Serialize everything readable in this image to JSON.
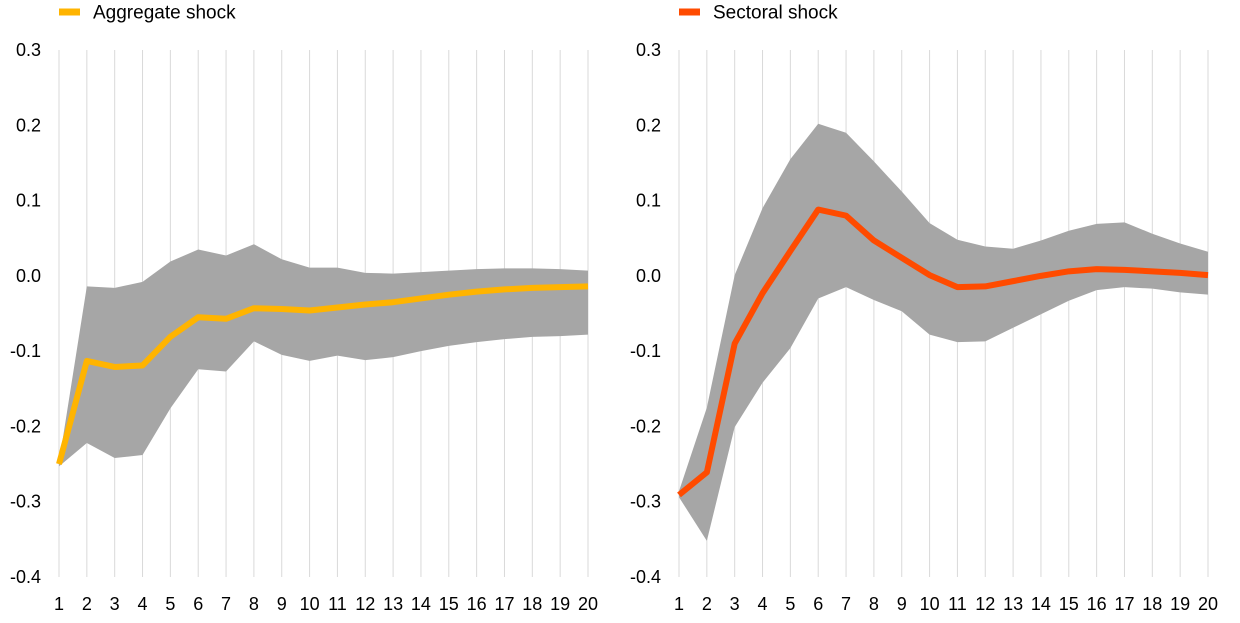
{
  "chart_data": [
    {
      "type": "line",
      "x": [
        1,
        2,
        3,
        4,
        5,
        6,
        7,
        8,
        9,
        10,
        11,
        12,
        13,
        14,
        15,
        16,
        17,
        18,
        19,
        20
      ],
      "ylim": [
        -0.4,
        0.3
      ],
      "yticks": [
        "0.3",
        "0.2",
        "0.1",
        "0.0",
        "-0.1",
        "-0.2",
        "-0.3",
        "-0.4"
      ],
      "grid": "vertical",
      "legend_position": "top-left",
      "series": [
        {
          "name": "Aggregate shock",
          "color": "#ffb400",
          "values": [
            -0.25,
            -0.113,
            -0.121,
            -0.119,
            -0.081,
            -0.055,
            -0.057,
            -0.043,
            -0.044,
            -0.046,
            -0.042,
            -0.038,
            -0.035,
            -0.03,
            -0.025,
            -0.021,
            -0.018,
            -0.016,
            -0.015,
            -0.014
          ],
          "band_color": "#a6a6a6",
          "band_upper": [
            -0.248,
            -0.014,
            -0.016,
            -0.008,
            0.019,
            0.035,
            0.027,
            0.042,
            0.022,
            0.011,
            0.011,
            0.004,
            0.003,
            0.005,
            0.007,
            0.009,
            0.01,
            0.01,
            0.009,
            0.007
          ],
          "band_lower": [
            -0.253,
            -0.222,
            -0.242,
            -0.238,
            -0.176,
            -0.124,
            -0.127,
            -0.087,
            -0.105,
            -0.113,
            -0.106,
            -0.112,
            -0.108,
            -0.1,
            -0.093,
            -0.088,
            -0.084,
            -0.081,
            -0.08,
            -0.078
          ]
        }
      ]
    },
    {
      "type": "line",
      "x": [
        1,
        2,
        3,
        4,
        5,
        6,
        7,
        8,
        9,
        10,
        11,
        12,
        13,
        14,
        15,
        16,
        17,
        18,
        19,
        20
      ],
      "ylim": [
        -0.4,
        0.3
      ],
      "yticks": [
        "0.3",
        "0.2",
        "0.1",
        "0.0",
        "-0.1",
        "-0.2",
        "-0.3",
        "-0.4"
      ],
      "grid": "vertical",
      "legend_position": "top-left",
      "series": [
        {
          "name": "Sectoral shock",
          "color": "#ff4b00",
          "values": [
            -0.291,
            -0.261,
            -0.09,
            -0.023,
            0.033,
            0.088,
            0.08,
            0.047,
            0.024,
            0.001,
            -0.015,
            -0.014,
            -0.007,
            0.0,
            0.006,
            0.009,
            0.008,
            0.006,
            0.004,
            0.001
          ],
          "band_color": "#a6a6a6",
          "band_upper": [
            -0.286,
            -0.175,
            0.001,
            0.09,
            0.155,
            0.202,
            0.19,
            0.152,
            0.112,
            0.07,
            0.048,
            0.039,
            0.036,
            0.047,
            0.06,
            0.069,
            0.071,
            0.056,
            0.043,
            0.032
          ],
          "band_lower": [
            -0.294,
            -0.352,
            -0.201,
            -0.142,
            -0.096,
            -0.03,
            -0.015,
            -0.032,
            -0.047,
            -0.078,
            -0.088,
            -0.087,
            -0.069,
            -0.051,
            -0.033,
            -0.019,
            -0.015,
            -0.017,
            -0.022,
            -0.025
          ]
        }
      ]
    }
  ]
}
